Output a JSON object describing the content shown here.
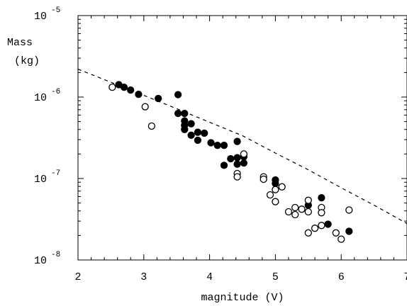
{
  "chart_data": {
    "type": "scatter",
    "title": "",
    "xlabel": "magnitude (V)",
    "ylabel_line1": "Mass",
    "ylabel_line2": "(kg)",
    "xlim": [
      2,
      7
    ],
    "ylim": [
      1e-08,
      1e-05
    ],
    "yscale": "log",
    "grid": false,
    "x_ticks": [
      {
        "value": 2,
        "label": "2"
      },
      {
        "value": 3,
        "label": "3"
      },
      {
        "value": 4,
        "label": "4"
      },
      {
        "value": 5,
        "label": "5"
      },
      {
        "value": 6,
        "label": "6"
      },
      {
        "value": 7,
        "label": "7"
      }
    ],
    "y_ticks": [
      {
        "value": 1e-08,
        "base": "10",
        "exp": "-8"
      },
      {
        "value": 1e-07,
        "base": "10",
        "exp": "-7"
      },
      {
        "value": 1e-06,
        "base": "10",
        "exp": "-6"
      },
      {
        "value": 1e-05,
        "base": "10",
        "exp": "-5"
      }
    ],
    "series": [
      {
        "marker": "filled-circle",
        "color": "#000000",
        "points": [
          [
            2.62,
            1.42e-06
          ],
          [
            2.7,
            1.32e-06
          ],
          [
            2.8,
            1.22e-06
          ],
          [
            2.92,
            1.08e-06
          ],
          [
            3.22,
            9.6e-07
          ],
          [
            3.52,
            1.07e-06
          ],
          [
            3.52,
            6.3e-07
          ],
          [
            3.62,
            6.3e-07
          ],
          [
            3.62,
            5.1e-07
          ],
          [
            3.62,
            4.5e-07
          ],
          [
            3.62,
            4e-07
          ],
          [
            3.72,
            4.7e-07
          ],
          [
            3.72,
            3.4e-07
          ],
          [
            3.82,
            3.7e-07
          ],
          [
            3.82,
            2.95e-07
          ],
          [
            3.92,
            3.6e-07
          ],
          [
            4.02,
            2.75e-07
          ],
          [
            4.12,
            2.55e-07
          ],
          [
            4.22,
            2.55e-07
          ],
          [
            4.22,
            1.45e-07
          ],
          [
            4.32,
            1.75e-07
          ],
          [
            4.42,
            2.85e-07
          ],
          [
            4.42,
            1.8e-07
          ],
          [
            4.42,
            1.5e-07
          ],
          [
            4.52,
            1.85e-07
          ],
          [
            4.52,
            1.55e-07
          ],
          [
            5.0,
            9.6e-08
          ],
          [
            5.0,
            8.7e-08
          ],
          [
            5.5,
            4.7e-08
          ],
          [
            5.7,
            5.8e-08
          ],
          [
            5.8,
            2.75e-08
          ],
          [
            6.12,
            2.25e-08
          ]
        ]
      },
      {
        "marker": "open-circle",
        "color": "#000000",
        "points": [
          [
            2.52,
            1.32e-06
          ],
          [
            3.02,
            7.6e-07
          ],
          [
            3.12,
            4.4e-07
          ],
          [
            4.42,
            1.15e-07
          ],
          [
            4.42,
            1.05e-07
          ],
          [
            4.52,
            2e-07
          ],
          [
            4.82,
            1.05e-07
          ],
          [
            4.82,
            9.8e-08
          ],
          [
            4.92,
            6.3e-08
          ],
          [
            5.0,
            7.3e-08
          ],
          [
            5.0,
            5.2e-08
          ],
          [
            5.1,
            7.9e-08
          ],
          [
            5.2,
            3.9e-08
          ],
          [
            5.3,
            4.4e-08
          ],
          [
            5.3,
            3.6e-08
          ],
          [
            5.4,
            4.2e-08
          ],
          [
            5.5,
            5.4e-08
          ],
          [
            5.5,
            3.9e-08
          ],
          [
            5.5,
            2.15e-08
          ],
          [
            5.6,
            2.45e-08
          ],
          [
            5.7,
            4.4e-08
          ],
          [
            5.7,
            3.8e-08
          ],
          [
            5.7,
            2.65e-08
          ],
          [
            5.92,
            2.15e-08
          ],
          [
            6.0,
            1.8e-08
          ],
          [
            6.12,
            4.1e-08
          ]
        ]
      }
    ],
    "dashed_line": [
      [
        2.0,
        2.2e-06
      ],
      [
        2.5,
        1.52e-06
      ],
      [
        3.0,
        1.05e-06
      ],
      [
        3.5,
        7.2e-07
      ],
      [
        4.0,
        4.9e-07
      ],
      [
        4.5,
        3.35e-07
      ],
      [
        5.0,
        2.05e-07
      ],
      [
        5.5,
        1.28e-07
      ],
      [
        6.0,
        7.7e-08
      ],
      [
        6.5,
        4.7e-08
      ],
      [
        7.0,
        2.8e-08
      ]
    ]
  }
}
